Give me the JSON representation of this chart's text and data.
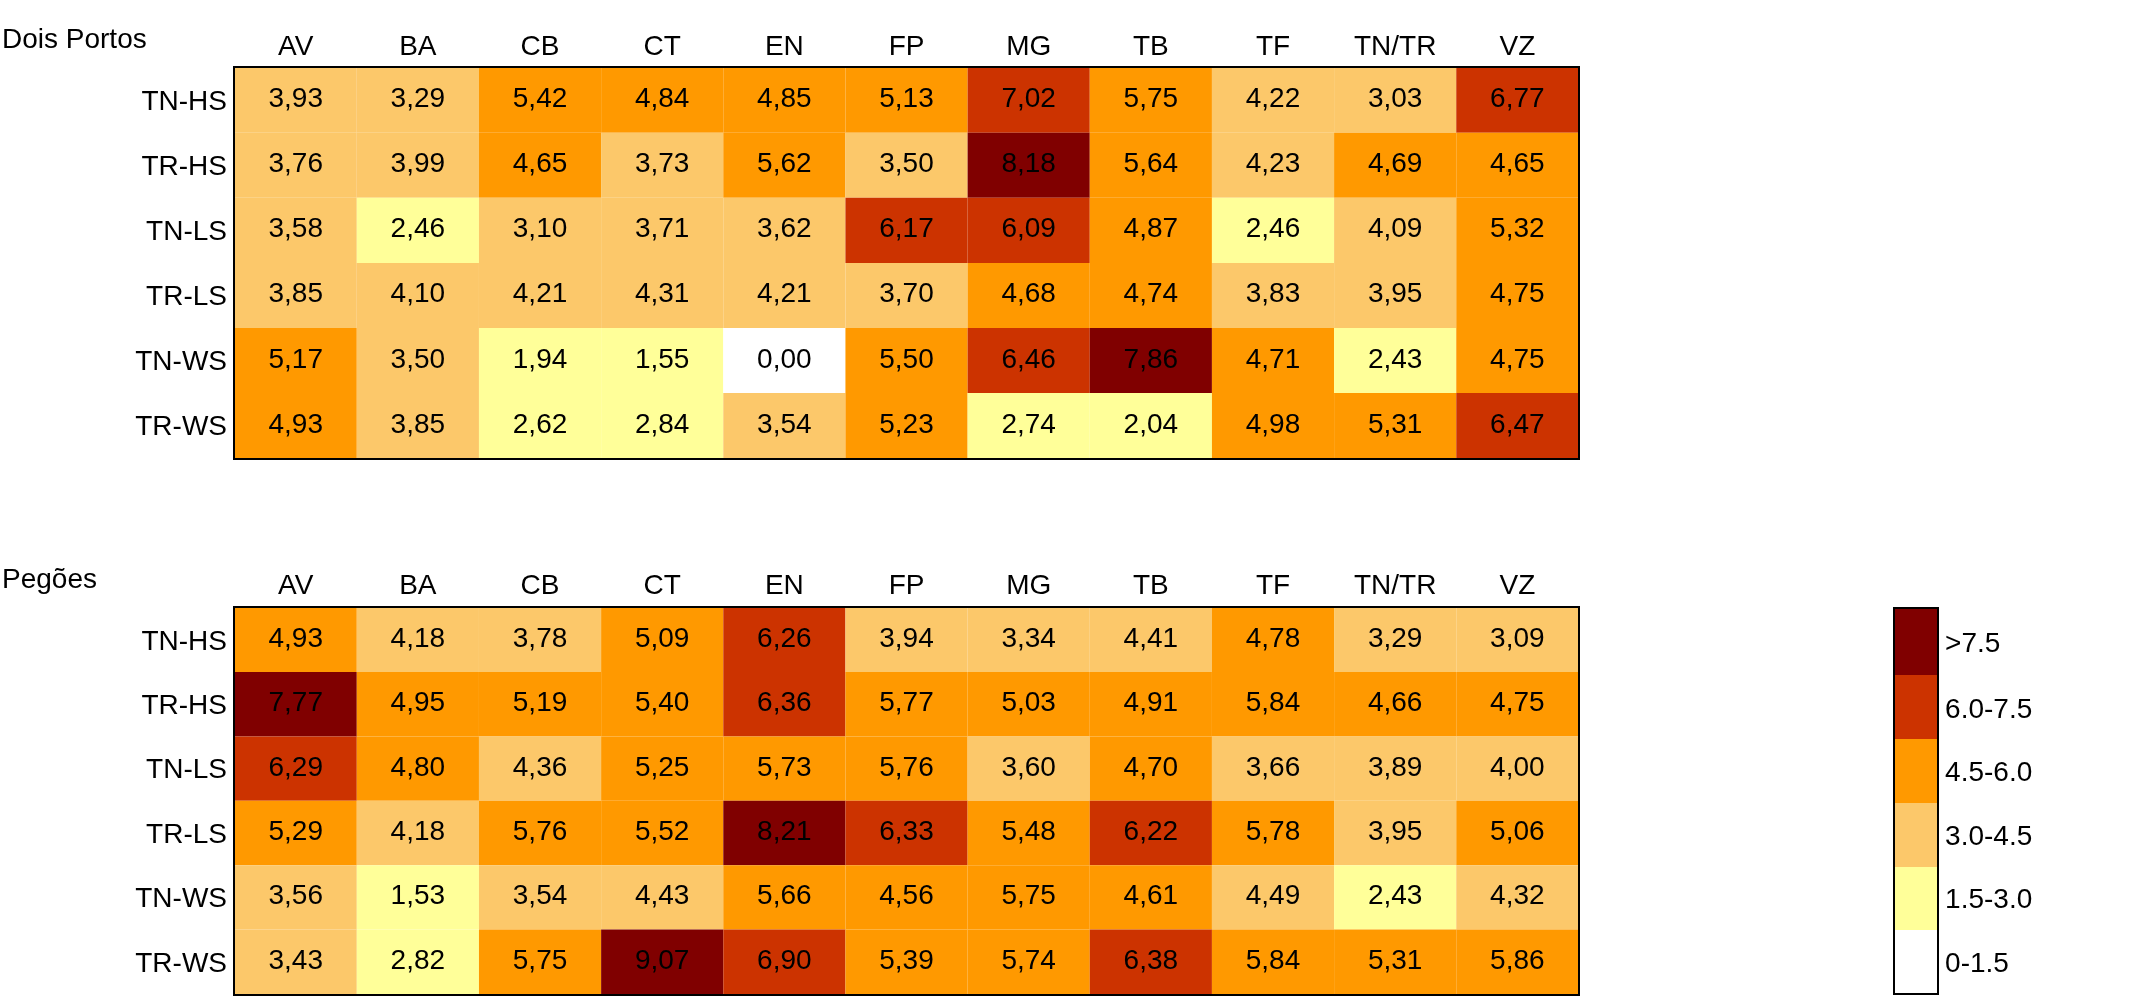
{
  "chart_data": [
    {
      "type": "heatmap",
      "title": "Dois Portos",
      "categories": [
        "AV",
        "BA",
        "CB",
        "CT",
        "EN",
        "FP",
        "MG",
        "TB",
        "TF",
        "TN/TR",
        "VZ"
      ],
      "y_categories": [
        "TN-HS",
        "TR-HS",
        "TN-LS",
        "TR-LS",
        "TN-WS",
        "TR-WS"
      ],
      "cells": [
        [
          3.93,
          3.29,
          5.42,
          4.84,
          4.85,
          5.13,
          7.02,
          5.75,
          4.22,
          3.03,
          6.77
        ],
        [
          3.76,
          3.99,
          4.65,
          3.73,
          5.62,
          3.5,
          8.18,
          5.64,
          4.23,
          4.69,
          4.65
        ],
        [
          3.58,
          2.46,
          3.1,
          3.71,
          3.62,
          6.17,
          6.09,
          4.87,
          2.46,
          4.09,
          5.32
        ],
        [
          3.85,
          4.1,
          4.21,
          4.31,
          4.21,
          3.7,
          4.68,
          4.74,
          3.83,
          3.95,
          4.75
        ],
        [
          5.17,
          3.5,
          1.94,
          1.55,
          0.0,
          5.5,
          6.46,
          7.86,
          4.71,
          2.43,
          4.75
        ],
        [
          4.93,
          3.85,
          2.62,
          2.84,
          3.54,
          5.23,
          2.74,
          2.04,
          4.98,
          5.31,
          6.47
        ]
      ],
      "cell_labels": [
        [
          "3,93",
          "3,29",
          "5,42",
          "4,84",
          "4,85",
          "5,13",
          "7,02",
          "5,75",
          "4,22",
          "3,03",
          "6,77"
        ],
        [
          "3,76",
          "3,99",
          "4,65",
          "3,73",
          "5,62",
          "3,50",
          "8,18",
          "5,64",
          "4,23",
          "4,69",
          "4,65"
        ],
        [
          "3,58",
          "2,46",
          "3,10",
          "3,71",
          "3,62",
          "6,17",
          "6,09",
          "4,87",
          "2,46",
          "4,09",
          "5,32"
        ],
        [
          "3,85",
          "4,10",
          "4,21",
          "4,31",
          "4,21",
          "3,70",
          "4,68",
          "4,74",
          "3,83",
          "3,95",
          "4,75"
        ],
        [
          "5,17",
          "3,50",
          "1,94",
          "1,55",
          "0,00",
          "5,50",
          "6,46",
          "7,86",
          "4,71",
          "2,43",
          "4,75"
        ],
        [
          "4,93",
          "3,85",
          "2,62",
          "2,84",
          "3,54",
          "5,23",
          "2,74",
          "2,04",
          "4,98",
          "5,31",
          "6,47"
        ]
      ]
    },
    {
      "type": "heatmap",
      "title": "Pegões",
      "categories": [
        "AV",
        "BA",
        "CB",
        "CT",
        "EN",
        "FP",
        "MG",
        "TB",
        "TF",
        "TN/TR",
        "VZ"
      ],
      "y_categories": [
        "TN-HS",
        "TR-HS",
        "TN-LS",
        "TR-LS",
        "TN-WS",
        "TR-WS"
      ],
      "cells": [
        [
          4.93,
          4.18,
          3.78,
          5.09,
          6.26,
          3.94,
          3.34,
          4.41,
          4.78,
          3.29,
          3.09
        ],
        [
          7.77,
          4.95,
          5.19,
          5.4,
          6.36,
          5.77,
          5.03,
          4.91,
          5.84,
          4.66,
          4.75
        ],
        [
          6.29,
          4.8,
          4.36,
          5.25,
          5.73,
          5.76,
          3.6,
          4.7,
          3.66,
          3.89,
          4.0
        ],
        [
          5.29,
          4.18,
          5.76,
          5.52,
          8.21,
          6.33,
          5.48,
          6.22,
          5.78,
          3.95,
          5.06
        ],
        [
          3.56,
          1.53,
          3.54,
          4.43,
          5.66,
          4.56,
          5.75,
          4.61,
          4.49,
          2.43,
          4.32
        ],
        [
          3.43,
          2.82,
          5.75,
          9.07,
          6.9,
          5.39,
          5.74,
          6.38,
          5.84,
          5.31,
          5.86
        ]
      ],
      "cell_labels": [
        [
          "4,93",
          "4,18",
          "3,78",
          "5,09",
          "6,26",
          "3,94",
          "3,34",
          "4,41",
          "4,78",
          "3,29",
          "3,09"
        ],
        [
          "7,77",
          "4,95",
          "5,19",
          "5,40",
          "6,36",
          "5,77",
          "5,03",
          "4,91",
          "5,84",
          "4,66",
          "4,75"
        ],
        [
          "6,29",
          "4,80",
          "4,36",
          "5,25",
          "5,73",
          "5,76",
          "3,60",
          "4,70",
          "3,66",
          "3,89",
          "4,00"
        ],
        [
          "5,29",
          "4,18",
          "5,76",
          "5,52",
          "8,21",
          "6,33",
          "5,48",
          "6,22",
          "5,78",
          "3,95",
          "5,06"
        ],
        [
          "3,56",
          "1,53",
          "3,54",
          "4,43",
          "5,66",
          "4,56",
          "5,75",
          "4,61",
          "4,49",
          "2,43",
          "4,32"
        ],
        [
          "3,43",
          "2,82",
          "5,75",
          "9,07",
          "6,90",
          "5,39",
          "5,74",
          "6,38",
          "5,84",
          "5,31",
          "5,86"
        ]
      ],
      "clim": [
        0,
        9.1
      ],
      "cticks": [
        {
          "value": 0.75,
          "label": "0-1.5"
        },
        {
          "value": 2.25,
          "label": "1.5-3.0"
        },
        {
          "value": 3.75,
          "label": "3.0-4.5"
        },
        {
          "value": 5.25,
          "label": "4.5-6.0"
        },
        {
          "value": 6.75,
          "label": "6.0-7.5"
        },
        {
          "value": 8.3,
          "label": ">7.5"
        }
      ]
    }
  ]
}
